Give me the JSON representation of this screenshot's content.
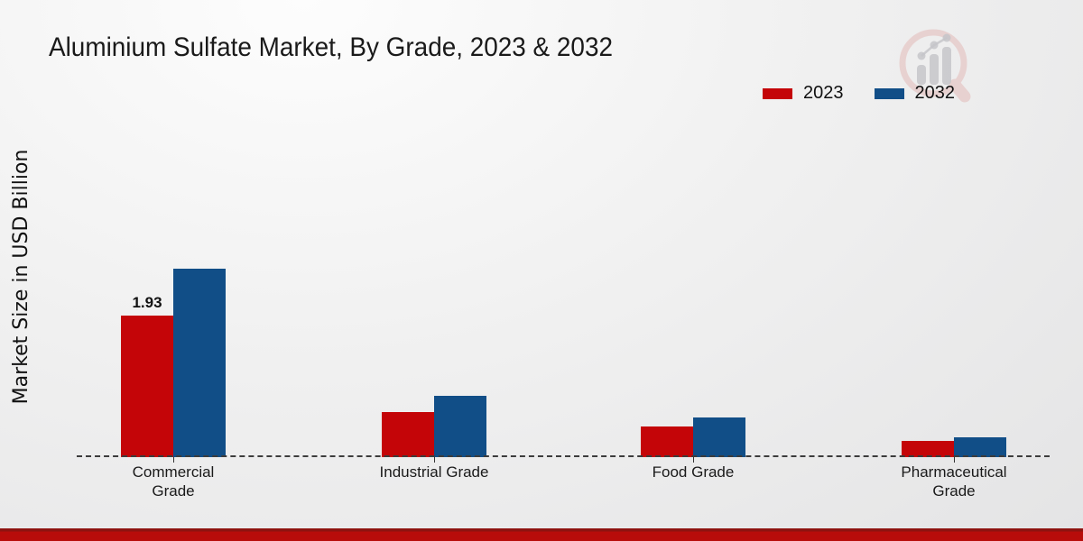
{
  "title": "Aluminium Sulfate Market, By Grade, 2023 & 2032",
  "ylabel": "Market Size in USD Billion",
  "legend": {
    "items": [
      {
        "label": "2023",
        "color": "#c40508"
      },
      {
        "label": "2032",
        "color": "#114e87"
      }
    ]
  },
  "watermark_icon": "magnifier-bar-chart-logo",
  "footer_color": "#b80c0a",
  "chart_data": {
    "type": "bar",
    "categories": [
      "Commercial Grade",
      "Industrial Grade",
      "Food Grade",
      "Pharmaceutical Grade"
    ],
    "series": [
      {
        "name": "2023",
        "color": "#c40508",
        "values": [
          1.93,
          0.61,
          0.42,
          0.22
        ]
      },
      {
        "name": "2032",
        "color": "#114e87",
        "values": [
          2.57,
          0.84,
          0.54,
          0.27
        ]
      }
    ],
    "title": "Aluminium Sulfate Market, By Grade, 2023 & 2032",
    "xlabel": "",
    "ylabel": "Market Size in USD Billion",
    "ylim": [
      0,
      3
    ],
    "grid": false,
    "legend_position": "top-right",
    "baseline_style": "dashed",
    "data_labels": [
      {
        "series": "2023",
        "category_index": 0,
        "text": "1.93"
      }
    ]
  }
}
